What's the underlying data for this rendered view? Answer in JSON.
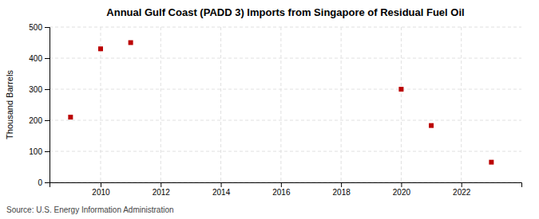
{
  "chart_data": {
    "type": "scatter",
    "title": "Annual Gulf Coast (PADD 3) Imports from Singapore of Residual Fuel Oil",
    "ylabel": "Thousand Barrels",
    "source": "Source: U.S. Energy Information Administration",
    "x": [
      2009,
      2010,
      2011,
      2020,
      2021,
      2023
    ],
    "values": [
      210,
      430,
      450,
      300,
      183,
      65
    ],
    "color": "#bb0000",
    "marker": "square",
    "xlim": [
      2008.3,
      2024.0
    ],
    "ylim": [
      0,
      500
    ],
    "xticks": [
      2010,
      2012,
      2014,
      2016,
      2018,
      2020,
      2022
    ],
    "yticks": [
      0,
      100,
      200,
      300,
      400,
      500
    ],
    "grid": true
  }
}
